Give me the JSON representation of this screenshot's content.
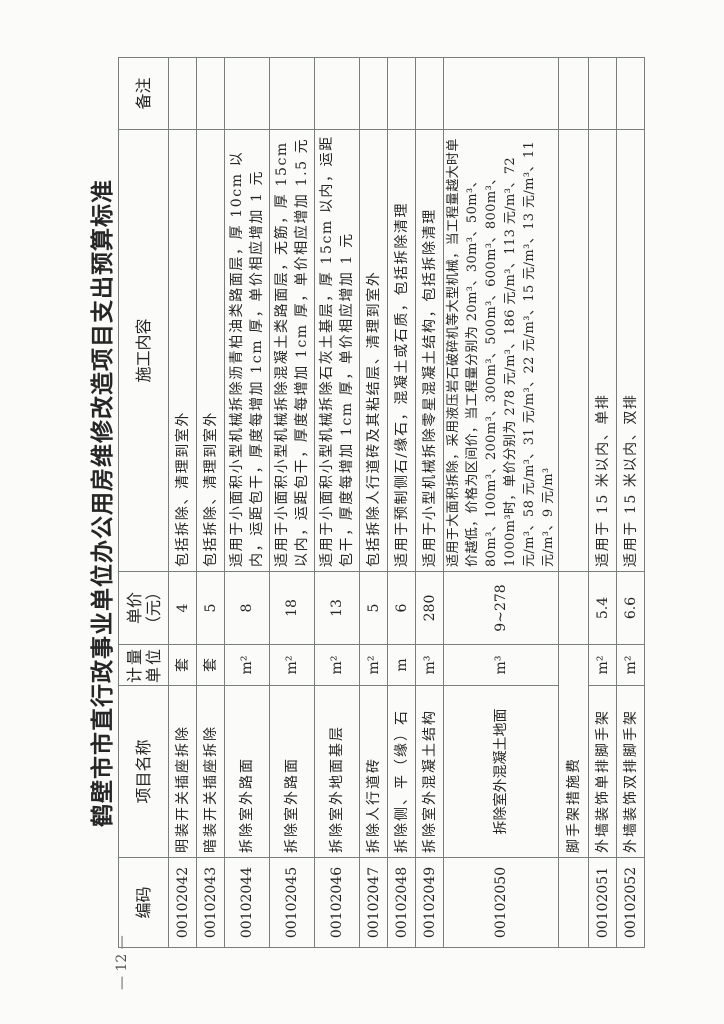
{
  "title": "鹤壁市市直行政事业单位办公用房维修改造项目支出预算标准",
  "page_number": "— 12 —",
  "table": {
    "headers": {
      "code": "编码",
      "name": "项目名称",
      "unit": "计量单位",
      "price": "单价（元）",
      "content": "施工内容",
      "remark": "备注"
    },
    "rows": [
      {
        "code": "00102042",
        "name": "明装开关插座拆除",
        "unit": "套",
        "price": "4",
        "content": "包括拆除、清理到室外",
        "remark": ""
      },
      {
        "code": "00102043",
        "name": "暗装开关插座拆除",
        "unit": "套",
        "price": "5",
        "content": "包括拆除、清理到室外",
        "remark": ""
      },
      {
        "code": "00102044",
        "name": "拆除室外路面",
        "unit": "m²",
        "price": "8",
        "content": "适用于小面积小型机械拆除沥青柏油类路面层，厚 10cm 以内，运距包干，厚度每增加 1cm 厚，单价相应增加 1 元",
        "remark": ""
      },
      {
        "code": "00102045",
        "name": "拆除室外路面",
        "unit": "m²",
        "price": "18",
        "content": "适用于小面积小型机械拆除混凝土类路面层，无筋，厚 15cm 以内，运距包干，厚度每增加 1cm 厚，单价相应增加 1.5 元",
        "remark": ""
      },
      {
        "code": "00102046",
        "name": "拆除室外地面基层",
        "unit": "m²",
        "price": "13",
        "content": "适用于小面积小型机械拆除石灰土基层，厚 15cm 以内，运距包干，厚度每增加 1cm 厚，单价相应增加 1 元",
        "remark": ""
      },
      {
        "code": "00102047",
        "name": "拆除人行道砖",
        "unit": "m²",
        "price": "5",
        "content": "包括拆除人行道砖及其粘结层、清理到室外",
        "remark": ""
      },
      {
        "code": "00102048",
        "name": "拆除侧、平（缘）石",
        "unit": "m",
        "price": "6",
        "content": "适用于预制侧石/缘石，混凝土或石质，包括拆除清理",
        "remark": ""
      },
      {
        "code": "00102049",
        "name": "拆除室外混凝土结构",
        "unit": "m³",
        "price": "280",
        "content": "适用于小型机械拆除零星混凝土结构，包括拆除清理",
        "remark": ""
      },
      {
        "code": "00102050",
        "name": "拆除室外混凝土地面",
        "unit": "m³",
        "price": "9~278",
        "content": "适用于大面积拆除，采用液压岩石破碎机等大型机械，当工程量越大时单价越低，价格为区间价，当工程量分别为 20m³、30m³、50m³、80m³、100m³、200m³、300m³、500m³、600m³、800m³、1000m³时，单价分别为 278 元/m³、186 元/m³、113 元/m³、72 元/m³、58 元/m³、31 元/m³、22 元/m³、15 元/m³、13 元/m³、11 元/m³、9 元/m³",
        "remark": ""
      }
    ],
    "section": {
      "code": "",
      "name": "脚手架措施费",
      "price": "",
      "content": "",
      "remark": ""
    },
    "rows2": [
      {
        "code": "00102051",
        "name": "外墙装饰单排脚手架",
        "unit": "m²",
        "price": "5.4",
        "content": "适用于 15 米以内、单排",
        "remark": ""
      },
      {
        "code": "00102052",
        "name": "外墙装饰双排脚手架",
        "unit": "m²",
        "price": "6.6",
        "content": "适用于 15 米以内、双排",
        "remark": ""
      }
    ]
  }
}
